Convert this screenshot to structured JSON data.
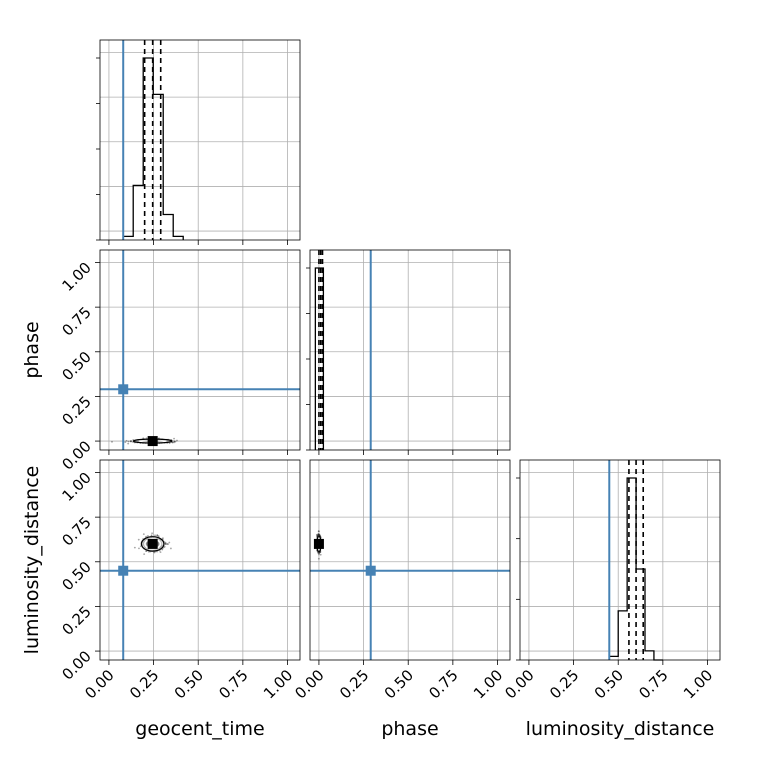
{
  "chart_data": {
    "type": "corner",
    "parameters": [
      "geocent_time",
      "phase",
      "luminosity_distance"
    ],
    "axis_labels": {
      "geocent_time": "geocent_time",
      "phase": "phase",
      "luminosity_distance": "luminosity_distance"
    },
    "range": [
      -0.05,
      1.07
    ],
    "ticks": [
      0.0,
      0.25,
      0.5,
      0.75,
      1.0
    ],
    "tick_labels": [
      "0.00",
      "0.25",
      "0.50",
      "0.75",
      "1.00"
    ],
    "truth_color": "#4682b4",
    "line_color": "#000000",
    "grid": true,
    "truths": {
      "geocent_time": 0.08,
      "phase": 0.29,
      "luminosity_distance": 0.45
    },
    "quantiles": {
      "geocent_time": [
        0.2,
        0.245,
        0.29
      ],
      "phase": [
        0.0,
        0.01,
        0.02
      ],
      "luminosity_distance": [
        0.56,
        0.6,
        0.64
      ]
    },
    "histograms": {
      "geocent_time": {
        "edges": [
          0.08,
          0.136,
          0.192,
          0.248,
          0.304,
          0.36,
          0.416
        ],
        "counts": [
          0.02,
          0.3,
          1.0,
          0.8,
          0.14,
          0.02
        ]
      },
      "phase": {
        "edges": [
          -0.02,
          0.0,
          0.025
        ],
        "counts": [
          1.0,
          1.0
        ]
      },
      "luminosity_distance": {
        "edges": [
          0.45,
          0.5,
          0.55,
          0.6,
          0.65,
          0.7,
          0.75
        ],
        "counts": [
          0.02,
          0.27,
          1.0,
          0.5,
          0.05,
          0.0
        ]
      }
    },
    "contours_2d": {
      "phase_vs_geocent_time": {
        "center": [
          0.245,
          0.0
        ],
        "spread": [
          0.12,
          0.012
        ]
      },
      "luminosity_distance_vs_geocent_time": {
        "center": [
          0.245,
          0.6
        ],
        "spread": [
          0.07,
          0.045
        ]
      },
      "luminosity_distance_vs_phase": {
        "center": [
          0.0,
          0.6
        ],
        "spread": [
          0.012,
          0.05
        ]
      }
    }
  }
}
